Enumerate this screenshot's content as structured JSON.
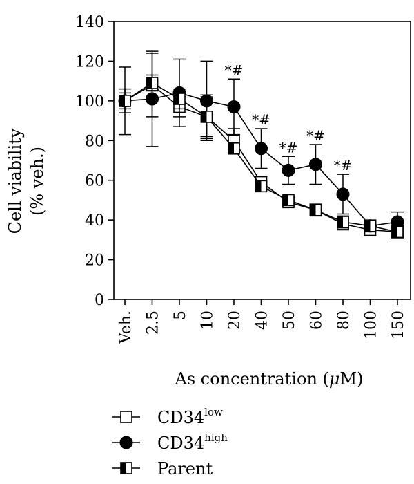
{
  "chart_data": {
    "type": "line",
    "xlabel_main": "As concentration (",
    "xlabel_unit_mu": "μ",
    "xlabel_unit_rest": "M)",
    "ylabel_line1": "Cell viability",
    "ylabel_line2": "(% veh.)",
    "ylim": [
      0,
      140
    ],
    "yticks": [
      0,
      20,
      40,
      60,
      80,
      100,
      120,
      140
    ],
    "categories": [
      "Veh.",
      "2.5",
      "5",
      "10",
      "20",
      "40",
      "50",
      "60",
      "80",
      "100",
      "150"
    ],
    "series": [
      {
        "name": "CD34",
        "name_sup": "low",
        "marker": "open-square",
        "values": [
          100,
          108,
          97,
          92,
          80,
          59,
          49,
          45,
          38,
          35,
          34
        ],
        "err": [
          6,
          16,
          5,
          10,
          6,
          3,
          2,
          3,
          3,
          3,
          3
        ]
      },
      {
        "name": "CD34",
        "name_sup": "high",
        "marker": "filled-circle",
        "values": [
          100,
          101,
          104,
          100,
          97,
          76,
          65,
          68,
          53,
          37,
          39
        ],
        "err": [
          17,
          24,
          17,
          20,
          14,
          10,
          7,
          10,
          10,
          3,
          5
        ]
      },
      {
        "name": "Parent",
        "name_sup": "",
        "marker": "half-square",
        "values": [
          100,
          109,
          101,
          92,
          76,
          57,
          50,
          45,
          39,
          37,
          34
        ],
        "err": [
          4,
          4,
          5,
          11,
          2,
          2,
          2,
          2,
          3,
          2,
          2
        ]
      }
    ],
    "annotations": [
      {
        "category": "20",
        "text": "*#"
      },
      {
        "category": "40",
        "text": "*#"
      },
      {
        "category": "50",
        "text": "*#"
      },
      {
        "category": "60",
        "text": "*#"
      },
      {
        "category": "80",
        "text": "*#"
      }
    ],
    "legend_position": "bottom-left"
  }
}
